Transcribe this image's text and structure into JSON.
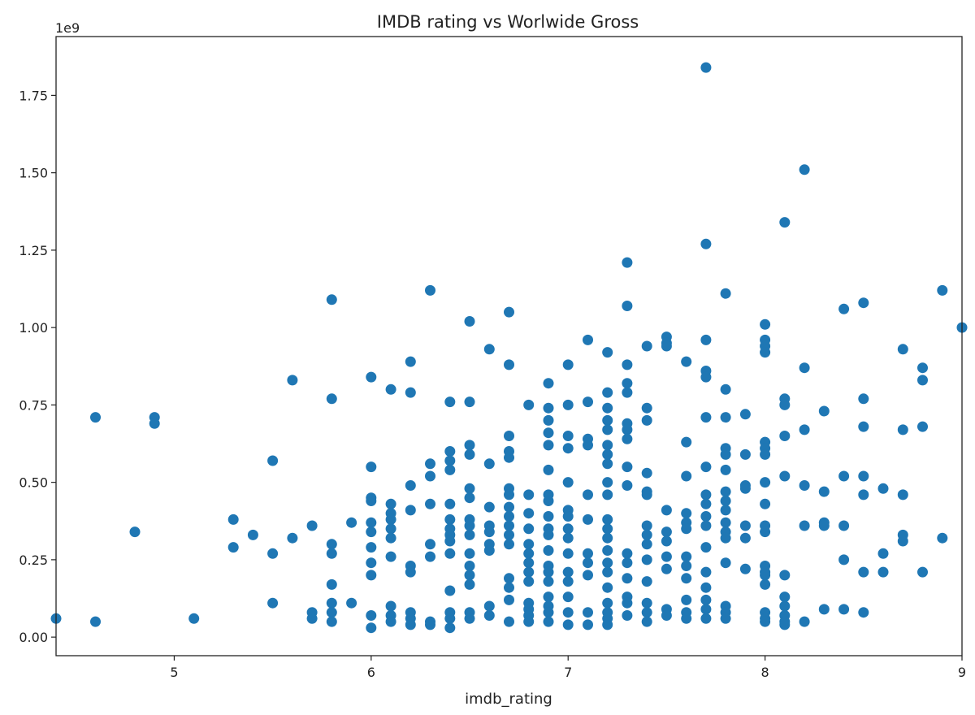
{
  "chart_data": {
    "type": "scatter",
    "title": "IMDB rating vs Worlwide Gross",
    "xlabel": "imdb_rating",
    "ylabel": "",
    "y_offset_label": "1e9",
    "xlim": [
      4.4,
      9.0
    ],
    "ylim": [
      -0.06,
      1.94
    ],
    "xticks": [
      5,
      6,
      7,
      8,
      9
    ],
    "xtick_labels": [
      "5",
      "6",
      "7",
      "8",
      "9"
    ],
    "yticks": [
      0.0,
      0.25,
      0.5,
      0.75,
      1.0,
      1.25,
      1.5,
      1.75
    ],
    "ytick_labels": [
      "0.00",
      "0.25",
      "0.50",
      "0.75",
      "1.00",
      "1.25",
      "1.50",
      "1.75"
    ],
    "y_units": "1e9 USD",
    "marker_color": "#1f77b4",
    "grid": false,
    "legend": "none",
    "points": [
      [
        4.4,
        0.06
      ],
      [
        4.6,
        0.71
      ],
      [
        4.6,
        0.05
      ],
      [
        4.8,
        0.34
      ],
      [
        4.9,
        0.71
      ],
      [
        4.9,
        0.69
      ],
      [
        5.1,
        0.06
      ],
      [
        5.3,
        0.38
      ],
      [
        5.3,
        0.29
      ],
      [
        5.4,
        0.33
      ],
      [
        5.5,
        0.57
      ],
      [
        5.5,
        0.27
      ],
      [
        5.5,
        0.11
      ],
      [
        5.6,
        0.83
      ],
      [
        5.6,
        0.32
      ],
      [
        5.7,
        0.36
      ],
      [
        5.7,
        0.08
      ],
      [
        5.7,
        0.06
      ],
      [
        5.8,
        1.09
      ],
      [
        5.8,
        0.77
      ],
      [
        5.8,
        0.3
      ],
      [
        5.8,
        0.27
      ],
      [
        5.8,
        0.17
      ],
      [
        5.8,
        0.11
      ],
      [
        5.8,
        0.08
      ],
      [
        5.8,
        0.05
      ],
      [
        5.9,
        0.37
      ],
      [
        5.9,
        0.11
      ],
      [
        6.0,
        0.84
      ],
      [
        6.0,
        0.55
      ],
      [
        6.0,
        0.45
      ],
      [
        6.0,
        0.44
      ],
      [
        6.0,
        0.37
      ],
      [
        6.0,
        0.34
      ],
      [
        6.0,
        0.29
      ],
      [
        6.0,
        0.24
      ],
      [
        6.0,
        0.2
      ],
      [
        6.0,
        0.07
      ],
      [
        6.0,
        0.03
      ],
      [
        6.1,
        0.8
      ],
      [
        6.1,
        0.43
      ],
      [
        6.1,
        0.4
      ],
      [
        6.1,
        0.38
      ],
      [
        6.1,
        0.35
      ],
      [
        6.1,
        0.32
      ],
      [
        6.1,
        0.26
      ],
      [
        6.1,
        0.1
      ],
      [
        6.1,
        0.07
      ],
      [
        6.1,
        0.05
      ],
      [
        6.2,
        0.89
      ],
      [
        6.2,
        0.79
      ],
      [
        6.2,
        0.49
      ],
      [
        6.2,
        0.41
      ],
      [
        6.2,
        0.23
      ],
      [
        6.2,
        0.21
      ],
      [
        6.2,
        0.08
      ],
      [
        6.2,
        0.06
      ],
      [
        6.2,
        0.04
      ],
      [
        6.3,
        1.12
      ],
      [
        6.3,
        0.56
      ],
      [
        6.3,
        0.52
      ],
      [
        6.3,
        0.43
      ],
      [
        6.3,
        0.3
      ],
      [
        6.3,
        0.26
      ],
      [
        6.3,
        0.05
      ],
      [
        6.3,
        0.04
      ],
      [
        6.4,
        0.76
      ],
      [
        6.4,
        0.6
      ],
      [
        6.4,
        0.57
      ],
      [
        6.4,
        0.54
      ],
      [
        6.4,
        0.43
      ],
      [
        6.4,
        0.38
      ],
      [
        6.4,
        0.35
      ],
      [
        6.4,
        0.33
      ],
      [
        6.4,
        0.31
      ],
      [
        6.4,
        0.27
      ],
      [
        6.4,
        0.15
      ],
      [
        6.4,
        0.08
      ],
      [
        6.4,
        0.06
      ],
      [
        6.4,
        0.03
      ],
      [
        6.5,
        1.02
      ],
      [
        6.5,
        0.76
      ],
      [
        6.5,
        0.62
      ],
      [
        6.5,
        0.59
      ],
      [
        6.5,
        0.48
      ],
      [
        6.5,
        0.45
      ],
      [
        6.5,
        0.38
      ],
      [
        6.5,
        0.36
      ],
      [
        6.5,
        0.33
      ],
      [
        6.5,
        0.27
      ],
      [
        6.5,
        0.23
      ],
      [
        6.5,
        0.2
      ],
      [
        6.5,
        0.17
      ],
      [
        6.5,
        0.08
      ],
      [
        6.5,
        0.06
      ],
      [
        6.6,
        0.93
      ],
      [
        6.6,
        0.56
      ],
      [
        6.6,
        0.42
      ],
      [
        6.6,
        0.36
      ],
      [
        6.6,
        0.34
      ],
      [
        6.6,
        0.3
      ],
      [
        6.6,
        0.28
      ],
      [
        6.6,
        0.1
      ],
      [
        6.6,
        0.07
      ],
      [
        6.7,
        1.05
      ],
      [
        6.7,
        0.88
      ],
      [
        6.7,
        0.65
      ],
      [
        6.7,
        0.6
      ],
      [
        6.7,
        0.58
      ],
      [
        6.7,
        0.48
      ],
      [
        6.7,
        0.46
      ],
      [
        6.7,
        0.42
      ],
      [
        6.7,
        0.39
      ],
      [
        6.7,
        0.36
      ],
      [
        6.7,
        0.33
      ],
      [
        6.7,
        0.3
      ],
      [
        6.7,
        0.19
      ],
      [
        6.7,
        0.16
      ],
      [
        6.7,
        0.12
      ],
      [
        6.7,
        0.05
      ],
      [
        6.8,
        0.75
      ],
      [
        6.8,
        0.46
      ],
      [
        6.8,
        0.4
      ],
      [
        6.8,
        0.35
      ],
      [
        6.8,
        0.3
      ],
      [
        6.8,
        0.27
      ],
      [
        6.8,
        0.24
      ],
      [
        6.8,
        0.21
      ],
      [
        6.8,
        0.18
      ],
      [
        6.8,
        0.11
      ],
      [
        6.8,
        0.09
      ],
      [
        6.8,
        0.07
      ],
      [
        6.8,
        0.05
      ],
      [
        6.9,
        0.82
      ],
      [
        6.9,
        0.74
      ],
      [
        6.9,
        0.7
      ],
      [
        6.9,
        0.66
      ],
      [
        6.9,
        0.62
      ],
      [
        6.9,
        0.54
      ],
      [
        6.9,
        0.46
      ],
      [
        6.9,
        0.44
      ],
      [
        6.9,
        0.39
      ],
      [
        6.9,
        0.35
      ],
      [
        6.9,
        0.33
      ],
      [
        6.9,
        0.28
      ],
      [
        6.9,
        0.23
      ],
      [
        6.9,
        0.21
      ],
      [
        6.9,
        0.18
      ],
      [
        6.9,
        0.13
      ],
      [
        6.9,
        0.1
      ],
      [
        6.9,
        0.08
      ],
      [
        6.9,
        0.05
      ],
      [
        7.0,
        0.88
      ],
      [
        7.0,
        0.75
      ],
      [
        7.0,
        0.65
      ],
      [
        7.0,
        0.61
      ],
      [
        7.0,
        0.5
      ],
      [
        7.0,
        0.41
      ],
      [
        7.0,
        0.39
      ],
      [
        7.0,
        0.35
      ],
      [
        7.0,
        0.32
      ],
      [
        7.0,
        0.27
      ],
      [
        7.0,
        0.21
      ],
      [
        7.0,
        0.18
      ],
      [
        7.0,
        0.13
      ],
      [
        7.0,
        0.08
      ],
      [
        7.0,
        0.04
      ],
      [
        7.1,
        0.96
      ],
      [
        7.1,
        0.76
      ],
      [
        7.1,
        0.64
      ],
      [
        7.1,
        0.62
      ],
      [
        7.1,
        0.46
      ],
      [
        7.1,
        0.38
      ],
      [
        7.1,
        0.27
      ],
      [
        7.1,
        0.24
      ],
      [
        7.1,
        0.2
      ],
      [
        7.1,
        0.08
      ],
      [
        7.1,
        0.04
      ],
      [
        7.2,
        0.92
      ],
      [
        7.2,
        0.79
      ],
      [
        7.2,
        0.74
      ],
      [
        7.2,
        0.7
      ],
      [
        7.2,
        0.67
      ],
      [
        7.2,
        0.62
      ],
      [
        7.2,
        0.59
      ],
      [
        7.2,
        0.56
      ],
      [
        7.2,
        0.5
      ],
      [
        7.2,
        0.46
      ],
      [
        7.2,
        0.38
      ],
      [
        7.2,
        0.35
      ],
      [
        7.2,
        0.32
      ],
      [
        7.2,
        0.28
      ],
      [
        7.2,
        0.24
      ],
      [
        7.2,
        0.21
      ],
      [
        7.2,
        0.16
      ],
      [
        7.2,
        0.11
      ],
      [
        7.2,
        0.08
      ],
      [
        7.2,
        0.06
      ],
      [
        7.2,
        0.04
      ],
      [
        7.3,
        1.21
      ],
      [
        7.3,
        1.07
      ],
      [
        7.3,
        0.88
      ],
      [
        7.3,
        0.82
      ],
      [
        7.3,
        0.79
      ],
      [
        7.3,
        0.69
      ],
      [
        7.3,
        0.67
      ],
      [
        7.3,
        0.64
      ],
      [
        7.3,
        0.55
      ],
      [
        7.3,
        0.49
      ],
      [
        7.3,
        0.27
      ],
      [
        7.3,
        0.24
      ],
      [
        7.3,
        0.19
      ],
      [
        7.3,
        0.13
      ],
      [
        7.3,
        0.11
      ],
      [
        7.3,
        0.07
      ],
      [
        7.4,
        0.94
      ],
      [
        7.4,
        0.74
      ],
      [
        7.4,
        0.7
      ],
      [
        7.4,
        0.53
      ],
      [
        7.4,
        0.47
      ],
      [
        7.4,
        0.46
      ],
      [
        7.4,
        0.36
      ],
      [
        7.4,
        0.33
      ],
      [
        7.4,
        0.3
      ],
      [
        7.4,
        0.25
      ],
      [
        7.4,
        0.18
      ],
      [
        7.4,
        0.11
      ],
      [
        7.4,
        0.08
      ],
      [
        7.4,
        0.05
      ],
      [
        7.5,
        0.97
      ],
      [
        7.5,
        0.95
      ],
      [
        7.5,
        0.94
      ],
      [
        7.5,
        0.41
      ],
      [
        7.5,
        0.34
      ],
      [
        7.5,
        0.31
      ],
      [
        7.5,
        0.26
      ],
      [
        7.5,
        0.22
      ],
      [
        7.5,
        0.09
      ],
      [
        7.5,
        0.07
      ],
      [
        7.6,
        0.89
      ],
      [
        7.6,
        0.63
      ],
      [
        7.6,
        0.52
      ],
      [
        7.6,
        0.4
      ],
      [
        7.6,
        0.37
      ],
      [
        7.6,
        0.35
      ],
      [
        7.6,
        0.26
      ],
      [
        7.6,
        0.23
      ],
      [
        7.6,
        0.19
      ],
      [
        7.6,
        0.12
      ],
      [
        7.6,
        0.08
      ],
      [
        7.6,
        0.06
      ],
      [
        7.7,
        1.84
      ],
      [
        7.7,
        1.27
      ],
      [
        7.7,
        0.96
      ],
      [
        7.7,
        0.86
      ],
      [
        7.7,
        0.84
      ],
      [
        7.7,
        0.71
      ],
      [
        7.7,
        0.55
      ],
      [
        7.7,
        0.46
      ],
      [
        7.7,
        0.43
      ],
      [
        7.7,
        0.39
      ],
      [
        7.7,
        0.36
      ],
      [
        7.7,
        0.29
      ],
      [
        7.7,
        0.21
      ],
      [
        7.7,
        0.16
      ],
      [
        7.7,
        0.12
      ],
      [
        7.7,
        0.09
      ],
      [
        7.7,
        0.06
      ],
      [
        7.8,
        1.11
      ],
      [
        7.8,
        0.8
      ],
      [
        7.8,
        0.71
      ],
      [
        7.8,
        0.61
      ],
      [
        7.8,
        0.59
      ],
      [
        7.8,
        0.54
      ],
      [
        7.8,
        0.47
      ],
      [
        7.8,
        0.44
      ],
      [
        7.8,
        0.41
      ],
      [
        7.8,
        0.37
      ],
      [
        7.8,
        0.34
      ],
      [
        7.8,
        0.32
      ],
      [
        7.8,
        0.24
      ],
      [
        7.8,
        0.1
      ],
      [
        7.8,
        0.08
      ],
      [
        7.8,
        0.06
      ],
      [
        7.9,
        0.72
      ],
      [
        7.9,
        0.59
      ],
      [
        7.9,
        0.49
      ],
      [
        7.9,
        0.48
      ],
      [
        7.9,
        0.36
      ],
      [
        7.9,
        0.32
      ],
      [
        7.9,
        0.22
      ],
      [
        8.0,
        1.01
      ],
      [
        8.0,
        0.96
      ],
      [
        8.0,
        0.94
      ],
      [
        8.0,
        0.92
      ],
      [
        8.0,
        0.63
      ],
      [
        8.0,
        0.61
      ],
      [
        8.0,
        0.59
      ],
      [
        8.0,
        0.5
      ],
      [
        8.0,
        0.43
      ],
      [
        8.0,
        0.36
      ],
      [
        8.0,
        0.34
      ],
      [
        8.0,
        0.23
      ],
      [
        8.0,
        0.21
      ],
      [
        8.0,
        0.2
      ],
      [
        8.0,
        0.17
      ],
      [
        8.0,
        0.08
      ],
      [
        8.0,
        0.06
      ],
      [
        8.0,
        0.05
      ],
      [
        8.1,
        1.34
      ],
      [
        8.1,
        0.77
      ],
      [
        8.1,
        0.75
      ],
      [
        8.1,
        0.65
      ],
      [
        8.1,
        0.52
      ],
      [
        8.1,
        0.2
      ],
      [
        8.1,
        0.13
      ],
      [
        8.1,
        0.1
      ],
      [
        8.1,
        0.07
      ],
      [
        8.1,
        0.05
      ],
      [
        8.1,
        0.04
      ],
      [
        8.2,
        1.51
      ],
      [
        8.2,
        0.87
      ],
      [
        8.2,
        0.67
      ],
      [
        8.2,
        0.49
      ],
      [
        8.2,
        0.36
      ],
      [
        8.2,
        0.05
      ],
      [
        8.3,
        0.73
      ],
      [
        8.3,
        0.47
      ],
      [
        8.3,
        0.37
      ],
      [
        8.3,
        0.36
      ],
      [
        8.3,
        0.09
      ],
      [
        8.4,
        1.06
      ],
      [
        8.4,
        0.52
      ],
      [
        8.4,
        0.36
      ],
      [
        8.4,
        0.25
      ],
      [
        8.4,
        0.09
      ],
      [
        8.5,
        1.08
      ],
      [
        8.5,
        0.77
      ],
      [
        8.5,
        0.68
      ],
      [
        8.5,
        0.52
      ],
      [
        8.5,
        0.46
      ],
      [
        8.5,
        0.21
      ],
      [
        8.5,
        0.08
      ],
      [
        8.6,
        0.48
      ],
      [
        8.6,
        0.27
      ],
      [
        8.6,
        0.21
      ],
      [
        8.7,
        0.93
      ],
      [
        8.7,
        0.67
      ],
      [
        8.7,
        0.46
      ],
      [
        8.7,
        0.33
      ],
      [
        8.7,
        0.31
      ],
      [
        8.8,
        0.87
      ],
      [
        8.8,
        0.83
      ],
      [
        8.8,
        0.68
      ],
      [
        8.8,
        0.21
      ],
      [
        8.9,
        1.12
      ],
      [
        8.9,
        0.32
      ],
      [
        9.0,
        1.0
      ]
    ]
  }
}
